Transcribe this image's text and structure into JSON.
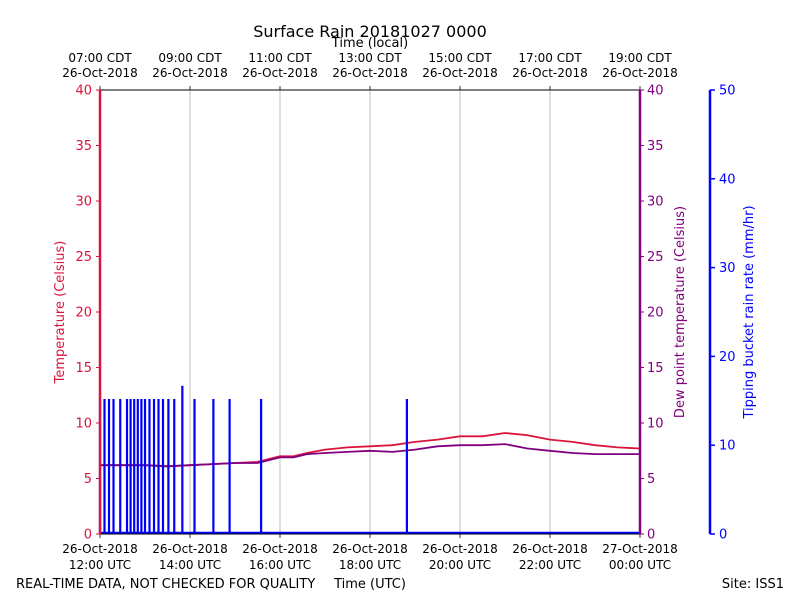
{
  "chart_data": {
    "type": "line",
    "title": "Surface Rain 20181027 0000",
    "top_axis_title": "Time (local)",
    "xlabel": "Time (UTC)",
    "footer_left": "REAL-TIME DATA, NOT CHECKED FOR QUALITY",
    "footer_right": "Site: ISS1",
    "x_range_hours": [
      12,
      24
    ],
    "grid": "vertical",
    "x_ticks": [
      {
        "hour": 12,
        "utc": [
          "26-Oct-2018",
          "12:00 UTC"
        ],
        "local": [
          "07:00 CDT",
          "26-Oct-2018"
        ]
      },
      {
        "hour": 14,
        "utc": [
          "26-Oct-2018",
          "14:00 UTC"
        ],
        "local": [
          "09:00 CDT",
          "26-Oct-2018"
        ]
      },
      {
        "hour": 16,
        "utc": [
          "26-Oct-2018",
          "16:00 UTC"
        ],
        "local": [
          "11:00 CDT",
          "26-Oct-2018"
        ]
      },
      {
        "hour": 18,
        "utc": [
          "26-Oct-2018",
          "18:00 UTC"
        ],
        "local": [
          "13:00 CDT",
          "26-Oct-2018"
        ]
      },
      {
        "hour": 20,
        "utc": [
          "26-Oct-2018",
          "20:00 UTC"
        ],
        "local": [
          "15:00 CDT",
          "26-Oct-2018"
        ]
      },
      {
        "hour": 22,
        "utc": [
          "26-Oct-2018",
          "22:00 UTC"
        ],
        "local": [
          "17:00 CDT",
          "26-Oct-2018"
        ]
      },
      {
        "hour": 24,
        "utc": [
          "27-Oct-2018",
          "00:00 UTC"
        ],
        "local": [
          "19:00 CDT",
          "26-Oct-2018"
        ]
      }
    ],
    "axes": {
      "temperature": {
        "label": "Temperature (Celsius)",
        "ylim": [
          0,
          40
        ],
        "ticks": [
          0,
          5,
          10,
          15,
          20,
          25,
          30,
          35,
          40
        ],
        "color": "#dc143c"
      },
      "dewpoint": {
        "label": "Dew point temperature (Celsius)",
        "ylim": [
          0,
          40
        ],
        "ticks": [
          0,
          5,
          10,
          15,
          20,
          25,
          30,
          35,
          40
        ],
        "color": "#800080"
      },
      "rain_rate": {
        "label": "Tipping bucket rain rate (mm/hr)",
        "ylim": [
          0,
          50
        ],
        "ticks": [
          0,
          10,
          20,
          30,
          40,
          50
        ],
        "color": "#0000ff"
      }
    },
    "series": [
      {
        "name": "Temperature",
        "axis": "temperature",
        "color": "#dc143c",
        "x": [
          12.0,
          12.5,
          13.0,
          13.5,
          14.0,
          14.5,
          15.0,
          15.5,
          15.8,
          16.0,
          16.3,
          16.6,
          17.0,
          17.5,
          18.0,
          18.5,
          19.0,
          19.5,
          20.0,
          20.5,
          21.0,
          21.5,
          22.0,
          22.5,
          23.0,
          23.5,
          24.0
        ],
        "values": [
          6.2,
          6.2,
          6.2,
          6.1,
          6.2,
          6.3,
          6.4,
          6.5,
          6.8,
          7.0,
          7.0,
          7.3,
          7.6,
          7.8,
          7.9,
          8.0,
          8.3,
          8.5,
          8.8,
          8.8,
          9.1,
          8.9,
          8.5,
          8.3,
          8.0,
          7.8,
          7.7
        ]
      },
      {
        "name": "Dew point",
        "axis": "dewpoint",
        "color": "#800080",
        "x": [
          12.0,
          12.5,
          13.0,
          13.5,
          14.0,
          14.5,
          15.0,
          15.5,
          15.8,
          16.0,
          16.3,
          16.6,
          17.0,
          17.5,
          18.0,
          18.5,
          19.0,
          19.5,
          20.0,
          20.5,
          21.0,
          21.5,
          22.0,
          22.5,
          23.0,
          23.5,
          24.0
        ],
        "values": [
          6.2,
          6.2,
          6.2,
          6.1,
          6.2,
          6.3,
          6.4,
          6.4,
          6.7,
          6.9,
          6.9,
          7.2,
          7.3,
          7.4,
          7.5,
          7.4,
          7.6,
          7.9,
          8.0,
          8.0,
          8.1,
          7.7,
          7.5,
          7.3,
          7.2,
          7.2,
          7.2
        ]
      },
      {
        "name": "Rain rate",
        "axis": "rain_rate",
        "color": "#0000ff",
        "type": "spikes",
        "x": [
          12.0,
          12.1,
          12.2,
          12.3,
          12.45,
          12.6,
          12.68,
          12.76,
          12.84,
          12.92,
          13.0,
          13.1,
          13.2,
          13.3,
          13.4,
          13.52,
          13.65,
          13.83,
          14.1,
          14.52,
          14.88,
          15.58,
          18.82
        ],
        "values": [
          15.2,
          15.2,
          15.2,
          15.2,
          15.2,
          15.2,
          15.2,
          15.2,
          15.2,
          15.2,
          15.2,
          15.2,
          15.2,
          15.2,
          15.2,
          15.2,
          15.2,
          16.7,
          15.2,
          15.2,
          15.2,
          15.2,
          15.2
        ]
      }
    ]
  }
}
